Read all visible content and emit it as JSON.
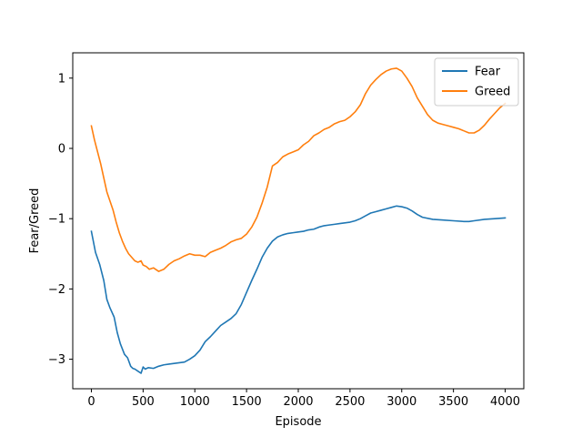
{
  "chart_data": {
    "type": "line",
    "xlabel": "Episode",
    "ylabel": "Fear/Greed",
    "xlim": [
      -180,
      4180
    ],
    "ylim": [
      -3.42,
      1.36
    ],
    "xticks": [
      0,
      500,
      1000,
      1500,
      2000,
      2500,
      3000,
      3500,
      4000
    ],
    "xtick_labels": [
      "0",
      "500",
      "1000",
      "1500",
      "2000",
      "2500",
      "3000",
      "3500",
      "4000"
    ],
    "yticks": [
      -3,
      -2,
      -1,
      0,
      1
    ],
    "ytick_labels": [
      "−3",
      "−2",
      "−1",
      "0",
      "1"
    ],
    "grid": false,
    "legend_position": "top-right",
    "series": [
      {
        "name": "Fear",
        "color": "#1f77b4",
        "x": [
          0,
          40,
          80,
          120,
          150,
          180,
          220,
          250,
          280,
          320,
          350,
          380,
          400,
          420,
          450,
          480,
          500,
          520,
          550,
          600,
          650,
          700,
          750,
          800,
          850,
          900,
          950,
          1000,
          1050,
          1100,
          1150,
          1200,
          1250,
          1300,
          1350,
          1400,
          1450,
          1500,
          1550,
          1600,
          1650,
          1700,
          1750,
          1800,
          1850,
          1900,
          1950,
          2000,
          2050,
          2100,
          2150,
          2200,
          2250,
          2300,
          2350,
          2400,
          2450,
          2500,
          2550,
          2600,
          2650,
          2700,
          2750,
          2800,
          2850,
          2900,
          2950,
          3000,
          3050,
          3100,
          3150,
          3200,
          3300,
          3400,
          3500,
          3600,
          3650,
          3700,
          3800,
          3900,
          4000
        ],
        "y": [
          -1.18,
          -1.48,
          -1.65,
          -1.88,
          -2.15,
          -2.27,
          -2.4,
          -2.62,
          -2.78,
          -2.93,
          -2.98,
          -3.1,
          -3.13,
          -3.14,
          -3.17,
          -3.2,
          -3.11,
          -3.14,
          -3.12,
          -3.13,
          -3.1,
          -3.08,
          -3.07,
          -3.06,
          -3.05,
          -3.04,
          -3.0,
          -2.95,
          -2.87,
          -2.75,
          -2.68,
          -2.6,
          -2.52,
          -2.47,
          -2.42,
          -2.35,
          -2.22,
          -2.05,
          -1.88,
          -1.72,
          -1.55,
          -1.42,
          -1.32,
          -1.26,
          -1.23,
          -1.21,
          -1.2,
          -1.19,
          -1.18,
          -1.16,
          -1.15,
          -1.12,
          -1.1,
          -1.09,
          -1.08,
          -1.07,
          -1.06,
          -1.05,
          -1.03,
          -1.0,
          -0.96,
          -0.92,
          -0.9,
          -0.88,
          -0.86,
          -0.84,
          -0.82,
          -0.83,
          -0.85,
          -0.89,
          -0.94,
          -0.98,
          -1.01,
          -1.02,
          -1.03,
          -1.04,
          -1.04,
          -1.03,
          -1.01,
          -1.0,
          -0.99
        ]
      },
      {
        "name": "Greed",
        "color": "#ff7f0e",
        "x": [
          0,
          30,
          60,
          90,
          120,
          150,
          180,
          210,
          240,
          270,
          300,
          330,
          360,
          390,
          420,
          450,
          480,
          500,
          530,
          560,
          600,
          650,
          700,
          750,
          800,
          850,
          900,
          950,
          1000,
          1050,
          1100,
          1150,
          1200,
          1250,
          1300,
          1350,
          1400,
          1450,
          1500,
          1550,
          1600,
          1650,
          1700,
          1750,
          1800,
          1850,
          1900,
          1950,
          2000,
          2050,
          2100,
          2150,
          2200,
          2250,
          2300,
          2350,
          2400,
          2450,
          2500,
          2550,
          2600,
          2650,
          2700,
          2750,
          2800,
          2850,
          2900,
          2950,
          3000,
          3050,
          3100,
          3150,
          3200,
          3250,
          3300,
          3350,
          3400,
          3450,
          3500,
          3550,
          3600,
          3650,
          3700,
          3750,
          3800,
          3850,
          3900,
          3950,
          4000
        ],
        "y": [
          0.32,
          0.12,
          -0.05,
          -0.22,
          -0.42,
          -0.62,
          -0.75,
          -0.88,
          -1.05,
          -1.2,
          -1.32,
          -1.42,
          -1.5,
          -1.55,
          -1.6,
          -1.62,
          -1.6,
          -1.66,
          -1.68,
          -1.72,
          -1.7,
          -1.75,
          -1.72,
          -1.65,
          -1.6,
          -1.57,
          -1.53,
          -1.5,
          -1.52,
          -1.52,
          -1.54,
          -1.48,
          -1.45,
          -1.42,
          -1.38,
          -1.33,
          -1.3,
          -1.28,
          -1.22,
          -1.12,
          -0.98,
          -0.78,
          -0.55,
          -0.25,
          -0.2,
          -0.12,
          -0.08,
          -0.05,
          -0.02,
          0.05,
          0.1,
          0.18,
          0.22,
          0.27,
          0.3,
          0.35,
          0.38,
          0.4,
          0.45,
          0.52,
          0.62,
          0.78,
          0.9,
          0.98,
          1.05,
          1.1,
          1.13,
          1.14,
          1.1,
          1.0,
          0.88,
          0.72,
          0.6,
          0.48,
          0.4,
          0.36,
          0.34,
          0.32,
          0.3,
          0.28,
          0.25,
          0.22,
          0.22,
          0.26,
          0.33,
          0.42,
          0.5,
          0.58,
          0.64
        ]
      }
    ]
  }
}
